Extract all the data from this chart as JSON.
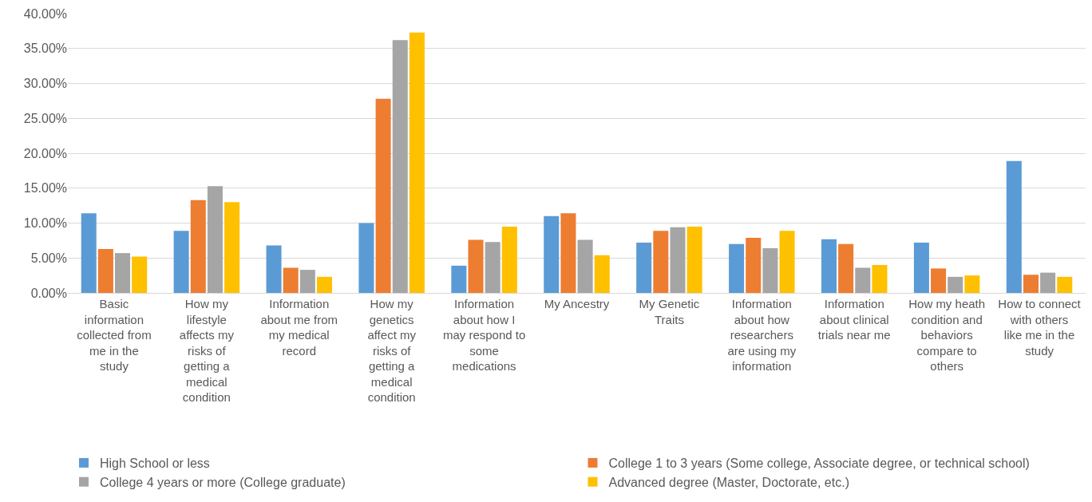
{
  "chart_data": {
    "type": "bar",
    "categories": [
      "Basic information collected from me in the study",
      "How my lifestyle affects my risks of getting a medical condition",
      "Information about me from my medical record",
      "How my genetics affect my risks of getting a medical condition",
      "Information about how I may respond to some medications",
      "My Ancestry",
      "My Genetic Traits",
      "Information about how researchers are using my information",
      "Information about clinical trials near me",
      "How my heath condition and behaviors compare to others",
      "How to connect with others like me in the study"
    ],
    "series": [
      {
        "name": "High School or less",
        "color": "#5b9bd5",
        "values": [
          11.4,
          8.9,
          6.8,
          10.0,
          3.9,
          11.0,
          7.2,
          7.0,
          7.7,
          7.2,
          18.9
        ]
      },
      {
        "name": "College 1 to 3 years (Some college, Associate degree, or technical school)",
        "color": "#ed7d31",
        "values": [
          6.3,
          13.3,
          3.6,
          27.8,
          7.6,
          11.4,
          8.9,
          7.9,
          7.0,
          3.5,
          2.6
        ]
      },
      {
        "name": "College 4 years or more (College graduate)",
        "color": "#a5a5a5",
        "values": [
          5.7,
          15.3,
          3.3,
          36.2,
          7.3,
          7.6,
          9.4,
          6.4,
          3.6,
          2.3,
          2.9
        ]
      },
      {
        "name": "Advanced degree (Master, Doctorate, etc.)",
        "color": "#ffc000",
        "values": [
          5.2,
          13.0,
          2.3,
          37.3,
          9.5,
          5.4,
          9.5,
          8.9,
          4.0,
          2.5,
          2.3
        ]
      }
    ],
    "ylim": [
      0,
      40
    ],
    "yticks": [
      {
        "value": 0,
        "label": "0.00%"
      },
      {
        "value": 5,
        "label": "5.00%"
      },
      {
        "value": 10,
        "label": "10.00%"
      },
      {
        "value": 15,
        "label": "15.00%"
      },
      {
        "value": 20,
        "label": "20.00%"
      },
      {
        "value": 25,
        "label": "25.00%"
      },
      {
        "value": 30,
        "label": "30.00%"
      },
      {
        "value": 35,
        "label": "35.00%"
      },
      {
        "value": 40,
        "label": "40.00%"
      }
    ],
    "grid": "y",
    "legend": "bottom"
  }
}
